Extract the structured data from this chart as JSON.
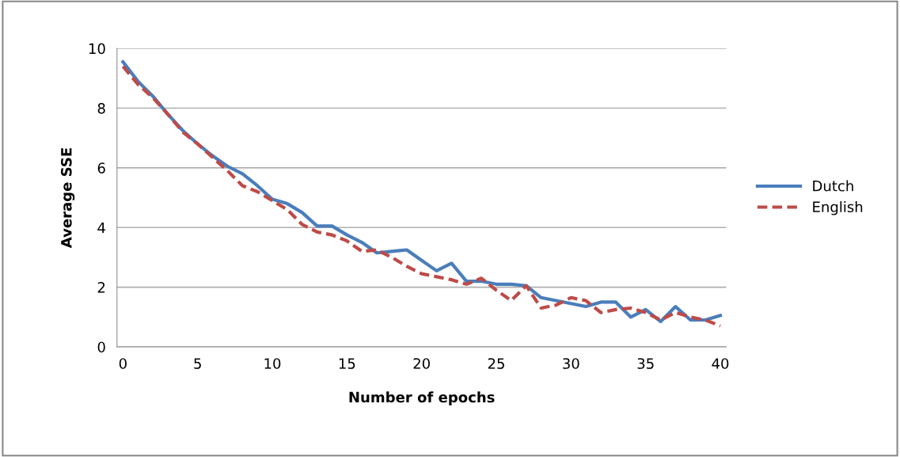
{
  "chart_data": {
    "type": "line",
    "xlabel": "Number of epochs",
    "ylabel": "Average SSE",
    "x": [
      0,
      1,
      2,
      3,
      4,
      5,
      6,
      7,
      8,
      9,
      10,
      11,
      12,
      13,
      14,
      15,
      16,
      17,
      18,
      19,
      20,
      21,
      22,
      23,
      24,
      25,
      26,
      27,
      28,
      29,
      30,
      31,
      32,
      33,
      34,
      35,
      36,
      37,
      38,
      39,
      40
    ],
    "series": [
      {
        "name": "Dutch",
        "color": "#4a7ebb",
        "line_style": "solid",
        "values": [
          9.55,
          8.9,
          8.4,
          7.8,
          7.25,
          6.8,
          6.4,
          6.05,
          5.8,
          5.4,
          4.95,
          4.8,
          4.5,
          4.05,
          4.05,
          3.75,
          3.5,
          3.15,
          3.2,
          3.25,
          2.9,
          2.55,
          2.8,
          2.2,
          2.2,
          2.1,
          2.1,
          2.05,
          1.65,
          1.55,
          1.45,
          1.35,
          1.5,
          1.5,
          1.0,
          1.25,
          0.85,
          1.35,
          0.9,
          0.9,
          1.05
        ]
      },
      {
        "name": "English",
        "color": "#be4b48",
        "line_style": "dashed",
        "values": [
          9.4,
          8.8,
          8.35,
          7.8,
          7.2,
          6.8,
          6.35,
          5.9,
          5.4,
          5.2,
          4.9,
          4.6,
          4.1,
          3.85,
          3.75,
          3.55,
          3.2,
          3.25,
          3.0,
          2.7,
          2.45,
          2.35,
          2.25,
          2.1,
          2.3,
          1.9,
          1.55,
          2.05,
          1.3,
          1.4,
          1.65,
          1.55,
          1.15,
          1.25,
          1.3,
          1.15,
          0.9,
          1.15,
          1.0,
          0.9,
          0.7
        ]
      }
    ],
    "xlim": [
      -0.4,
      40.4
    ],
    "xticks": [
      0,
      5,
      10,
      15,
      20,
      25,
      30,
      35,
      40
    ],
    "ylim": [
      0,
      10
    ],
    "yticks": [
      0,
      2,
      4,
      6,
      8,
      10
    ],
    "grid": "y",
    "legend": "right",
    "marker": "none"
  }
}
